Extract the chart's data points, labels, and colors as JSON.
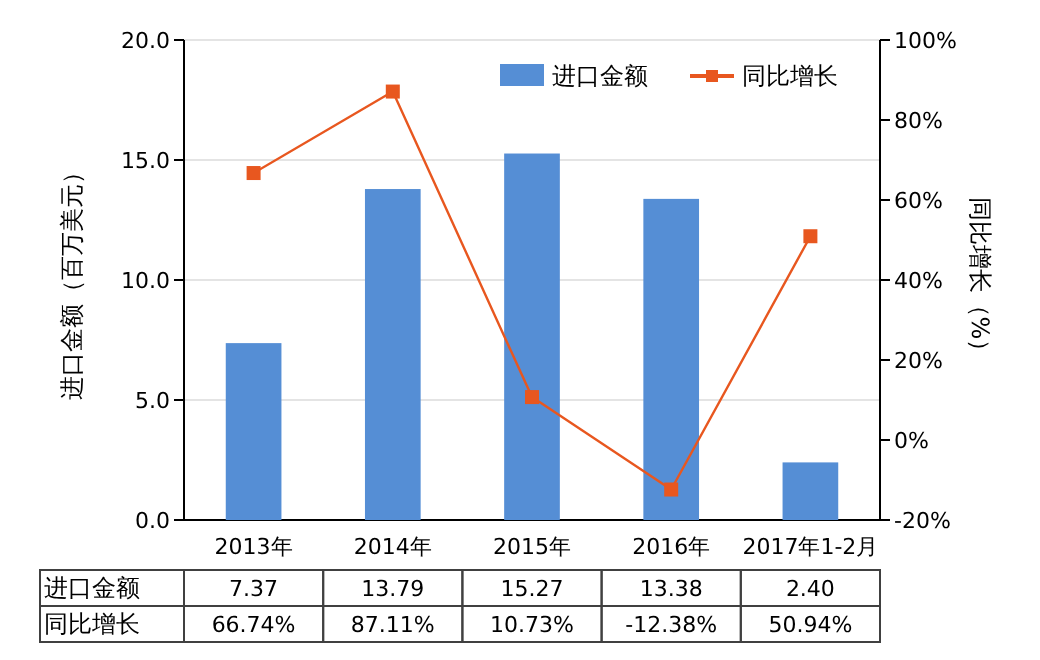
{
  "chart_data": {
    "type": "bar",
    "categories": [
      "2013年",
      "2014年",
      "2015年",
      "2016年",
      "2017年1-2月"
    ],
    "ylabel": "进口金额（百万美元）",
    "y2label": "同比增长（%）",
    "ylim": [
      0,
      20
    ],
    "yticks": [
      {
        "value": 0,
        "label": "0.0"
      },
      {
        "value": 5,
        "label": "5.0"
      },
      {
        "value": 10,
        "label": "10.0"
      },
      {
        "value": 15,
        "label": "15.0"
      },
      {
        "value": 20,
        "label": "20.0"
      }
    ],
    "y2lim": [
      -20,
      100
    ],
    "y2ticks": [
      {
        "value": -20,
        "label": "-20%"
      },
      {
        "value": 0,
        "label": "0%"
      },
      {
        "value": 20,
        "label": "20%"
      },
      {
        "value": 40,
        "label": "40%"
      },
      {
        "value": 60,
        "label": "60%"
      },
      {
        "value": 80,
        "label": "80%"
      },
      {
        "value": 100,
        "label": "100%"
      }
    ],
    "grid": "y",
    "legend": "top right",
    "marker": "square",
    "series": [
      {
        "name": "进口金额",
        "color": "#558ed5",
        "values": [
          7.37,
          13.79,
          15.27,
          13.38,
          2.4
        ],
        "value_labels": [
          "7.37",
          "13.79",
          "15.27",
          "13.38",
          "2.40"
        ]
      },
      {
        "name": "同比增长",
        "type": "line",
        "axis": "y2",
        "color": "#e8571f",
        "values": [
          66.74,
          87.11,
          10.73,
          -12.38,
          50.94
        ],
        "value_labels": [
          "66.74%",
          "87.11%",
          "10.73%",
          "-12.38%",
          "50.94%"
        ]
      }
    ]
  }
}
